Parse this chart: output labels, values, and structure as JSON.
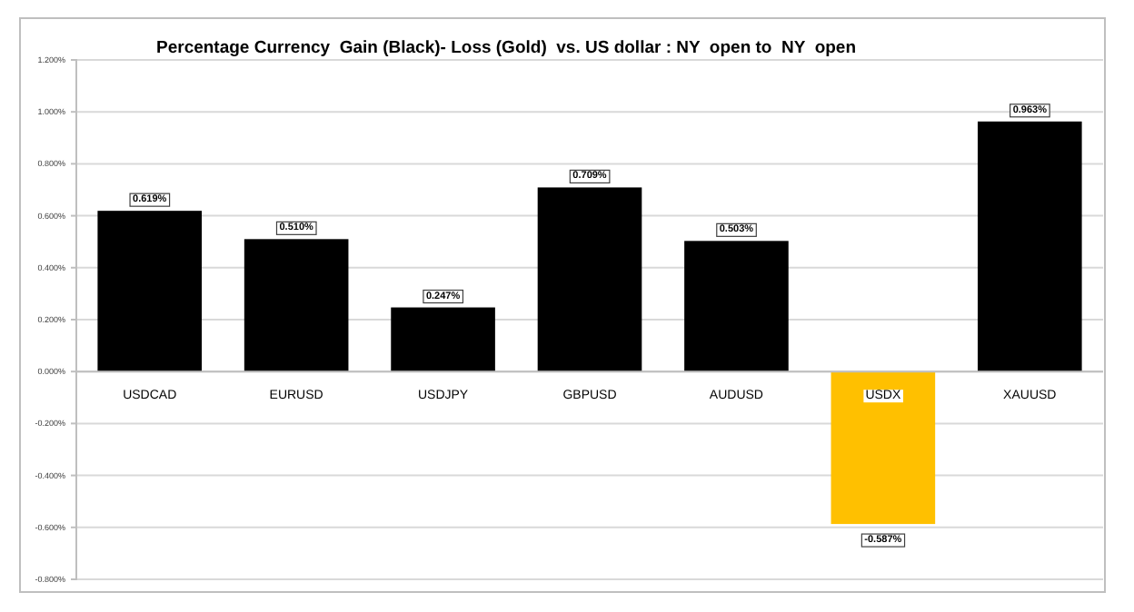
{
  "chart_data": {
    "type": "bar",
    "title": "Percentage Currency  Gain (Black)- Loss (Gold)  vs. US dollar : NY  open to  NY  open",
    "categories": [
      "USDCAD",
      "EURUSD",
      "USDJPY",
      "GBPUSD",
      "AUDUSD",
      "USDX",
      "XAUUSD"
    ],
    "values": [
      0.619,
      0.51,
      0.247,
      0.709,
      0.503,
      -0.587,
      0.963
    ],
    "colors": [
      "#000000",
      "#000000",
      "#000000",
      "#000000",
      "#000000",
      "#ffc000",
      "#000000"
    ],
    "value_labels": [
      "0.619%",
      "0.510%",
      "0.247%",
      "0.709%",
      "0.503%",
      "-0.587%",
      "0.963%"
    ],
    "ylim": [
      -0.8,
      1.2
    ],
    "yticks": [
      {
        "value": -0.8,
        "label": "-0.800%"
      },
      {
        "value": -0.6,
        "label": "-0.600%"
      },
      {
        "value": -0.4,
        "label": "-0.400%"
      },
      {
        "value": -0.2,
        "label": "-0.200%"
      },
      {
        "value": 0,
        "label": "0.000%"
      },
      {
        "value": 0.2,
        "label": "0.200%"
      },
      {
        "value": 0.4,
        "label": "0.400%"
      },
      {
        "value": 0.6,
        "label": "0.600%"
      },
      {
        "value": 0.8,
        "label": "0.800%"
      },
      {
        "value": 1,
        "label": "1.000%"
      },
      {
        "value": 1.2,
        "label": "1.200%"
      }
    ],
    "grid": "y"
  }
}
